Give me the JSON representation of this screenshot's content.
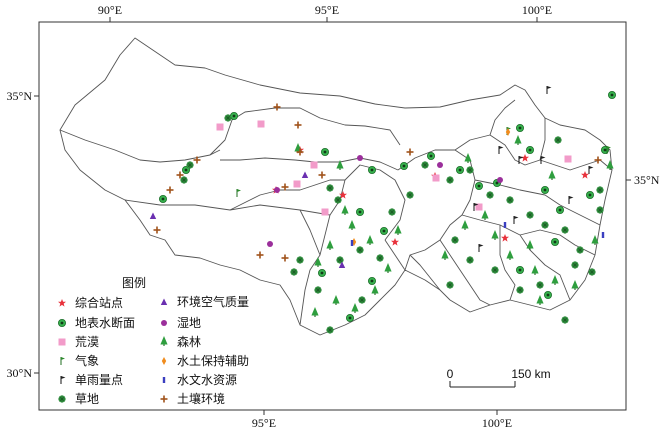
{
  "axes": {
    "top_ticks": [
      "90°E",
      "95°E",
      "100°E"
    ],
    "bottom_ticks": [
      "95°E",
      "100°E"
    ],
    "left_ticks": [
      "35°N",
      "30°N"
    ],
    "right_ticks": [
      "35°N"
    ]
  },
  "legend": {
    "title": "图例",
    "items": [
      {
        "key": "composite",
        "label": "综合站点",
        "symbol": "star",
        "color": "#e8323c"
      },
      {
        "key": "surface_water",
        "label": "地表水断面",
        "symbol": "ring-dot",
        "color": "#2ea043"
      },
      {
        "key": "desert",
        "label": "荒漠",
        "symbol": "square",
        "color": "#f29bc9"
      },
      {
        "key": "meteorology",
        "label": "气象",
        "symbol": "flag-green",
        "color": "#2d8a2d"
      },
      {
        "key": "rain_gauge",
        "label": "单雨量点",
        "symbol": "flag-black",
        "color": "#222222"
      },
      {
        "key": "grassland",
        "label": "草地",
        "symbol": "asterisk",
        "color": "#3aa14a"
      },
      {
        "key": "air_quality",
        "label": "环境空气质量",
        "symbol": "triangle",
        "color": "#6a2fb0"
      },
      {
        "key": "wetland",
        "label": "湿地",
        "symbol": "circle",
        "color": "#9b2f9b"
      },
      {
        "key": "forest",
        "label": "森林",
        "symbol": "tree",
        "color": "#2e9e3e"
      },
      {
        "key": "soil_conservation",
        "label": "水土保持辅助",
        "symbol": "diamond",
        "color": "#f08c1e"
      },
      {
        "key": "hydrology",
        "label": "水文水资源",
        "symbol": "bar",
        "color": "#3a3fc0"
      },
      {
        "key": "soil_environment",
        "label": "土壤环境",
        "symbol": "cross",
        "color": "#a0521a"
      }
    ]
  },
  "scale_bar": {
    "start_label": "0",
    "end_label": "150 km"
  }
}
